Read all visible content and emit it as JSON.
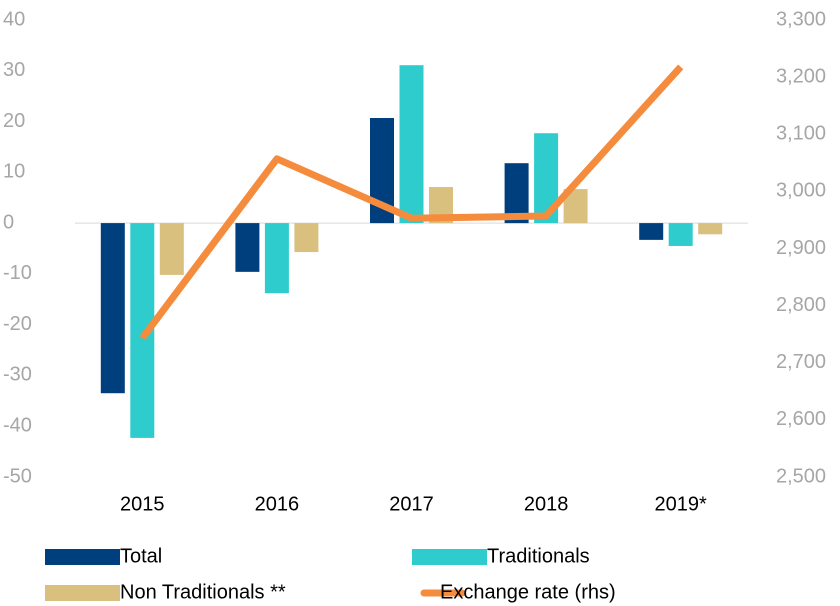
{
  "chart_data": {
    "type": "bar_line",
    "categories": [
      "2015",
      "2016",
      "2017",
      "2018",
      "2019*"
    ],
    "series": [
      {
        "name": "Total",
        "color": "#003f7d",
        "values": [
          -33.5,
          -9.6,
          20.7,
          11.8,
          -3.3
        ]
      },
      {
        "name": "Traditionals",
        "color": "#2ecccc",
        "values": [
          -42.3,
          -13.8,
          31.1,
          17.7,
          -4.5
        ]
      },
      {
        "name": "Non Traditionals **",
        "color": "#d9c07e",
        "values": [
          -10.2,
          -5.7,
          7.1,
          6.7,
          -2.2
        ]
      },
      {
        "name": "Exchange rate (rhs)",
        "color": "#f58b3c",
        "axis": "y2",
        "type": "line",
        "values": [
          2743,
          3057,
          2953,
          2957,
          3218
        ]
      }
    ],
    "ylim": [
      -50,
      40
    ],
    "yticks": [
      -50,
      -40,
      -30,
      -20,
      -10,
      0,
      10,
      20,
      30,
      40
    ],
    "y2lim": [
      2500,
      3300
    ],
    "y2ticks": [
      {
        "value": 2500,
        "label": "2,500"
      },
      {
        "value": 2600,
        "label": "2,600"
      },
      {
        "value": 2700,
        "label": "2,700"
      },
      {
        "value": 2800,
        "label": "2,800"
      },
      {
        "value": 2900,
        "label": "2,900"
      },
      {
        "value": 3000,
        "label": "3,000"
      },
      {
        "value": 3100,
        "label": "3,100"
      },
      {
        "value": 3200,
        "label": "3,200"
      },
      {
        "value": 3300,
        "label": "3,300"
      }
    ],
    "grid": false
  }
}
